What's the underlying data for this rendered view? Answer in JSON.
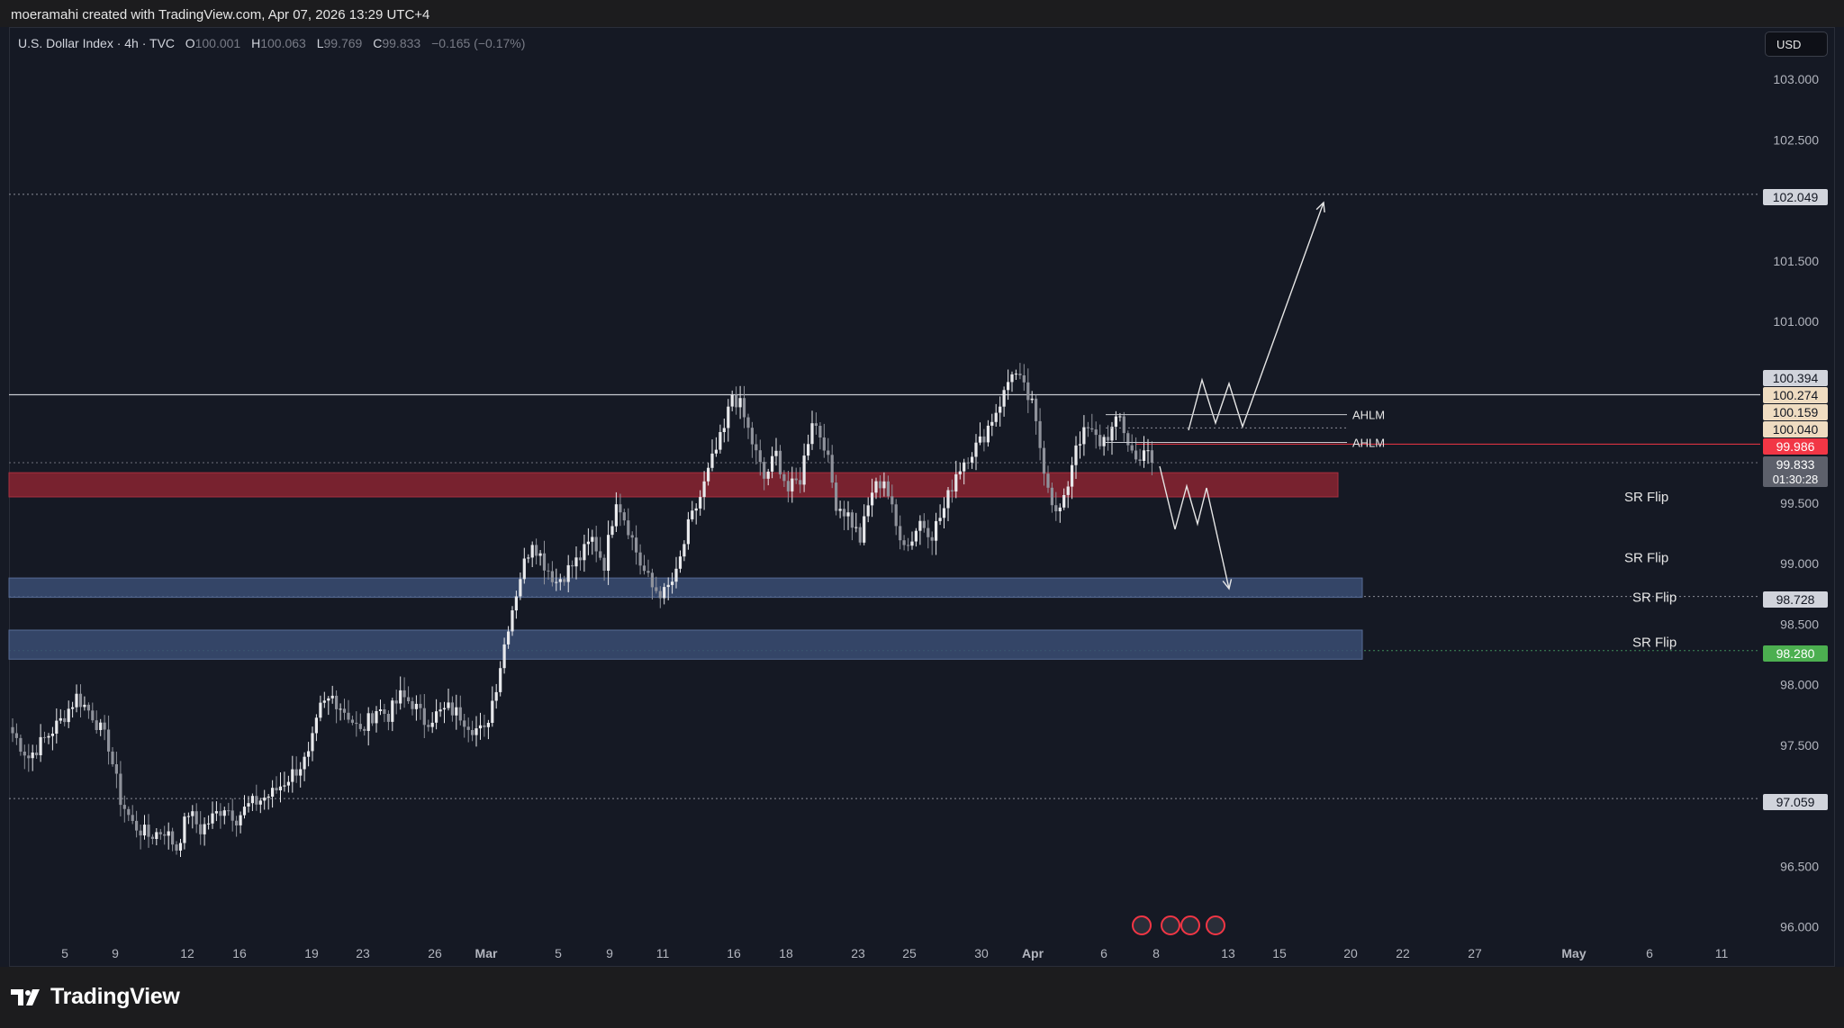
{
  "header": {
    "credit": "moeramahi created with TradingView.com, Apr 07, 2026 13:29 UTC+4"
  },
  "legend": {
    "symbol": "U.S. Dollar Index · 4h · TVC",
    "o_label": "O",
    "o_value": "100.001",
    "h_label": "H",
    "h_value": "100.063",
    "l_label": "L",
    "l_value": "99.769",
    "c_label": "C",
    "c_value": "99.833",
    "change": "−0.165 (−0.17%)"
  },
  "currency": "USD",
  "brand": "TradingView",
  "colors": {
    "background": "#151924",
    "candle": "#d1d4dc",
    "resistance_zone": "#7d2330",
    "support_zone": "#3a4d73",
    "price_red": "#f23645",
    "price_green": "#4caf50"
  },
  "chart_data": {
    "type": "candlestick",
    "symbol": "U.S. Dollar Index",
    "interval": "4h",
    "ylim": [
      95.9,
      103.3
    ],
    "y_ticks": [
      "103.000",
      "102.500",
      "101.500",
      "101.000",
      "99.500",
      "99.000",
      "98.500",
      "98.000",
      "97.500",
      "96.500",
      "96.000"
    ],
    "x_ticks": [
      "5",
      "9",
      "12",
      "16",
      "19",
      "23",
      "26",
      "Mar",
      "5",
      "9",
      "11",
      "16",
      "18",
      "23",
      "25",
      "30",
      "Apr",
      "6",
      "8",
      "13",
      "15",
      "20",
      "22",
      "27",
      "May",
      "6",
      "11"
    ],
    "price_labels": [
      {
        "value": "102.049",
        "style": "light"
      },
      {
        "value": "100.394",
        "style": "light"
      },
      {
        "value": "100.274",
        "style": "tan"
      },
      {
        "value": "100.159",
        "style": "tan"
      },
      {
        "value": "100.040",
        "style": "tan"
      },
      {
        "value": "99.986",
        "style": "red"
      },
      {
        "value": "99.833",
        "style": "gray",
        "countdown": "01:30:28"
      },
      {
        "value": "98.728",
        "style": "light"
      },
      {
        "value": "98.280",
        "style": "green"
      },
      {
        "value": "97.059",
        "style": "light"
      }
    ],
    "horizontal_levels": [
      102.049,
      100.394,
      98.728,
      98.28,
      97.059
    ],
    "zones": [
      {
        "type": "resistance",
        "from": 99.55,
        "to": 99.75
      },
      {
        "type": "support",
        "from": 98.72,
        "to": 98.88
      },
      {
        "type": "support",
        "from": 98.21,
        "to": 98.45
      }
    ],
    "annotations": [
      {
        "text": "SR Flip",
        "y": 99.55
      },
      {
        "text": "SR Flip",
        "y": 99.05
      },
      {
        "text": "SR Flip",
        "y": 98.72
      },
      {
        "text": "SR Flip",
        "y": 98.35
      },
      {
        "text": "AHLM",
        "y": 100.23
      },
      {
        "text": "AHLM",
        "y": 100.0
      }
    ],
    "close_path": [
      [
        0,
        97.6
      ],
      [
        4,
        97.4
      ],
      [
        8,
        97.55
      ],
      [
        12,
        97.7
      ],
      [
        16,
        97.9
      ],
      [
        20,
        97.75
      ],
      [
        24,
        97.5
      ],
      [
        27,
        97.05
      ],
      [
        30,
        96.85
      ],
      [
        34,
        96.75
      ],
      [
        38,
        96.8
      ],
      [
        41,
        96.65
      ],
      [
        44,
        96.95
      ],
      [
        47,
        96.8
      ],
      [
        50,
        96.9
      ],
      [
        53,
        97.0
      ],
      [
        56,
        96.9
      ],
      [
        59,
        97.0
      ],
      [
        62,
        97.05
      ],
      [
        65,
        97.1
      ],
      [
        68,
        97.2
      ],
      [
        71,
        97.3
      ],
      [
        74,
        97.4
      ],
      [
        77,
        97.8
      ],
      [
        80,
        97.9
      ],
      [
        84,
        97.75
      ],
      [
        87,
        97.6
      ],
      [
        91,
        97.8
      ],
      [
        94,
        97.75
      ],
      [
        97,
        97.9
      ],
      [
        100,
        97.85
      ],
      [
        103,
        97.7
      ],
      [
        106,
        97.75
      ],
      [
        109,
        97.8
      ],
      [
        112,
        97.75
      ],
      [
        115,
        97.65
      ],
      [
        118,
        97.6
      ],
      [
        121,
        98.0
      ],
      [
        124,
        98.5
      ],
      [
        127,
        98.9
      ],
      [
        130,
        99.2
      ],
      [
        133,
        99.0
      ],
      [
        136,
        98.85
      ],
      [
        139,
        98.95
      ],
      [
        142,
        99.05
      ],
      [
        145,
        99.2
      ],
      [
        148,
        99.0
      ],
      [
        151,
        99.55
      ],
      [
        154,
        99.3
      ],
      [
        157,
        99.0
      ],
      [
        160,
        98.8
      ],
      [
        163,
        98.75
      ],
      [
        166,
        98.9
      ],
      [
        169,
        99.3
      ],
      [
        172,
        99.55
      ],
      [
        175,
        99.85
      ],
      [
        178,
        100.1
      ],
      [
        180,
        100.4
      ],
      [
        182,
        100.3
      ],
      [
        185,
        100.0
      ],
      [
        188,
        99.7
      ],
      [
        191,
        99.9
      ],
      [
        194,
        99.6
      ],
      [
        197,
        99.7
      ],
      [
        200,
        100.2
      ],
      [
        203,
        100.0
      ],
      [
        206,
        99.5
      ],
      [
        209,
        99.4
      ],
      [
        212,
        99.2
      ],
      [
        215,
        99.6
      ],
      [
        218,
        99.7
      ],
      [
        221,
        99.3
      ],
      [
        224,
        99.15
      ],
      [
        227,
        99.35
      ],
      [
        230,
        99.25
      ],
      [
        233,
        99.45
      ],
      [
        236,
        99.75
      ],
      [
        239,
        99.9
      ],
      [
        242,
        100.0
      ],
      [
        245,
        100.2
      ],
      [
        248,
        100.4
      ],
      [
        250,
        100.6
      ],
      [
        252,
        100.5
      ],
      [
        255,
        100.3
      ],
      [
        258,
        99.8
      ],
      [
        261,
        99.4
      ],
      [
        263,
        99.5
      ],
      [
        266,
        100.0
      ],
      [
        269,
        100.1
      ],
      [
        272,
        100.0
      ],
      [
        275,
        100.1
      ],
      [
        277,
        100.2
      ],
      [
        279,
        100.0
      ],
      [
        281,
        99.85
      ],
      [
        283,
        99.95
      ],
      [
        285,
        99.83
      ]
    ],
    "projections": [
      {
        "name": "bullish",
        "path": [
          [
            1320,
            478
          ],
          [
            1335,
            422
          ],
          [
            1350,
            470
          ],
          [
            1365,
            426
          ],
          [
            1380,
            474
          ],
          [
            1470,
            225
          ]
        ]
      },
      {
        "name": "bearish",
        "path": [
          [
            1288,
            518
          ],
          [
            1305,
            588
          ],
          [
            1318,
            540
          ],
          [
            1330,
            582
          ],
          [
            1340,
            542
          ],
          [
            1365,
            654
          ]
        ]
      }
    ]
  }
}
